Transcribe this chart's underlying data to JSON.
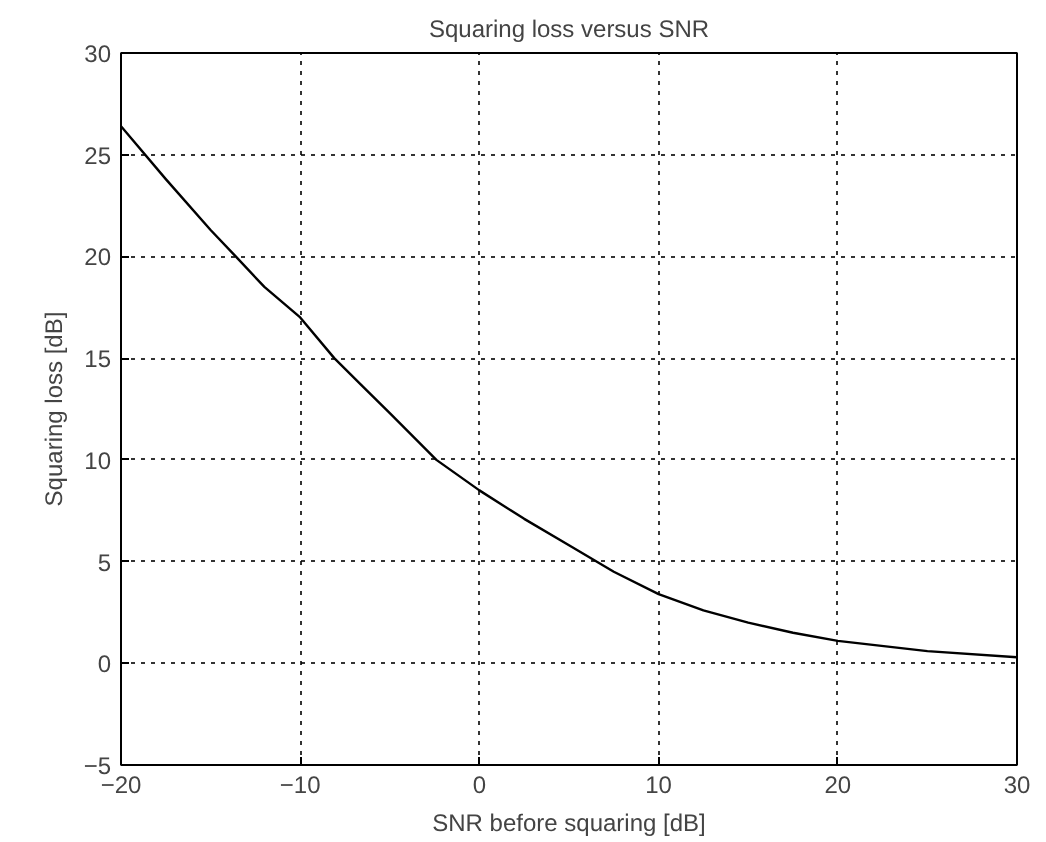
{
  "chart_data": {
    "type": "line",
    "title": "Squaring loss versus SNR",
    "xlabel": "SNR before squaring [dB]",
    "ylabel": "Squaring loss [dB]",
    "x": [
      -20,
      -17.5,
      -15,
      -13.6,
      -12,
      -10,
      -8.1,
      -6.5,
      -5,
      -2.4,
      0,
      2.5,
      5,
      7.5,
      10,
      12.5,
      15,
      17.5,
      20,
      25,
      30
    ],
    "series": [
      {
        "color": "#000000",
        "values": [
          26.4,
          23.8,
          21.3,
          20,
          18.5,
          17.0,
          15,
          13.6,
          12.3,
          10,
          8.5,
          7.1,
          5.8,
          4.5,
          3.4,
          2.6,
          2.0,
          1.5,
          1.1,
          0.6,
          0.3
        ]
      }
    ],
    "xlim": [
      -20,
      30
    ],
    "ylim": [
      -5,
      30
    ],
    "xticks": [
      -20,
      -10,
      0,
      10,
      20,
      30
    ],
    "yticks": [
      -5,
      0,
      5,
      10,
      15,
      20,
      25,
      30
    ],
    "grid": true,
    "line_style": "solid",
    "marker": "none"
  }
}
